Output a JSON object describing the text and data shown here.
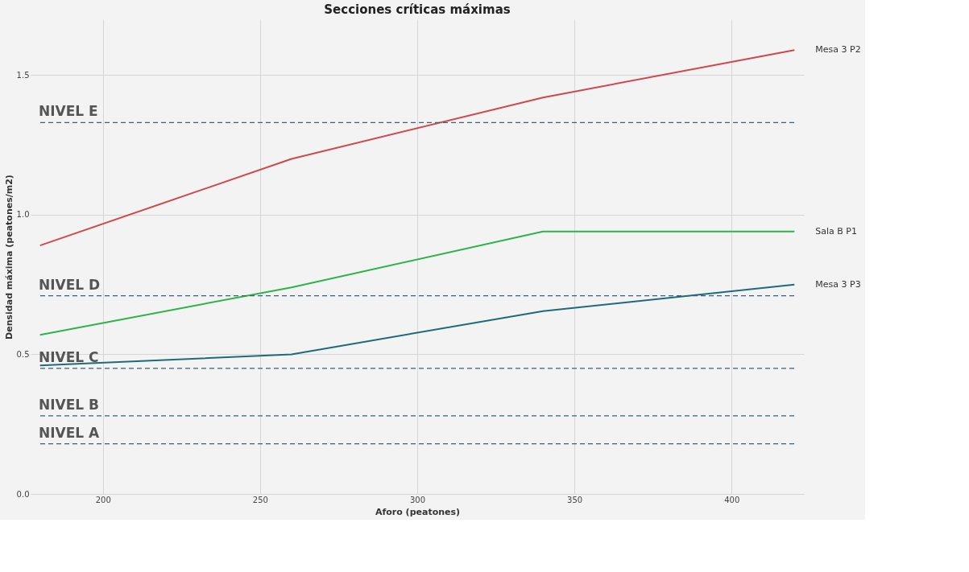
{
  "chart_data": {
    "type": "line",
    "title": "Secciones críticas máximas",
    "xlabel": "Aforo (peatones)",
    "ylabel": "Densidad máxima (peatones/m2)",
    "x": [
      180,
      260,
      340,
      420
    ],
    "series": [
      {
        "name": "Mesa 3 P2",
        "color": "#d0484e",
        "values": [
          0.89,
          1.2,
          1.42,
          1.59
        ]
      },
      {
        "name": "Sala B P1",
        "color": "#2db34a",
        "values": [
          0.57,
          0.74,
          0.94,
          0.94
        ]
      },
      {
        "name": "Mesa 3 P3",
        "color": "#1f6a7a",
        "values": [
          0.46,
          0.5,
          0.655,
          0.75
        ]
      }
    ],
    "xlim": [
      177,
      423
    ],
    "xticks": [
      200,
      250,
      300,
      350,
      400
    ],
    "ylim": [
      0,
      1.7
    ],
    "yticks": [
      {
        "value": 0,
        "label": "0.0"
      },
      {
        "value": 0.5,
        "label": "0.5"
      },
      {
        "value": 1,
        "label": "1.0"
      },
      {
        "value": 1.5,
        "label": "1.5"
      }
    ],
    "grid": true,
    "marker": "none",
    "line_style": "solid",
    "ref_lines": [
      {
        "axis": "y",
        "value": 1.33,
        "label": "NIVEL E",
        "color": "#3f5f78",
        "line_style": "dashed"
      },
      {
        "axis": "y",
        "value": 0.71,
        "label": "NIVEL D",
        "color": "#3f5f78",
        "line_style": "dashed"
      },
      {
        "axis": "y",
        "value": 0.45,
        "label": "NIVEL C",
        "color": "#3f5f78",
        "line_style": "dashed"
      },
      {
        "axis": "y",
        "value": 0.28,
        "label": "NIVEL B",
        "color": "#3f5f78",
        "line_style": "dashed"
      },
      {
        "axis": "y",
        "value": 0.18,
        "label": "NIVEL A",
        "color": "#3f5f78",
        "line_style": "dashed"
      }
    ]
  }
}
